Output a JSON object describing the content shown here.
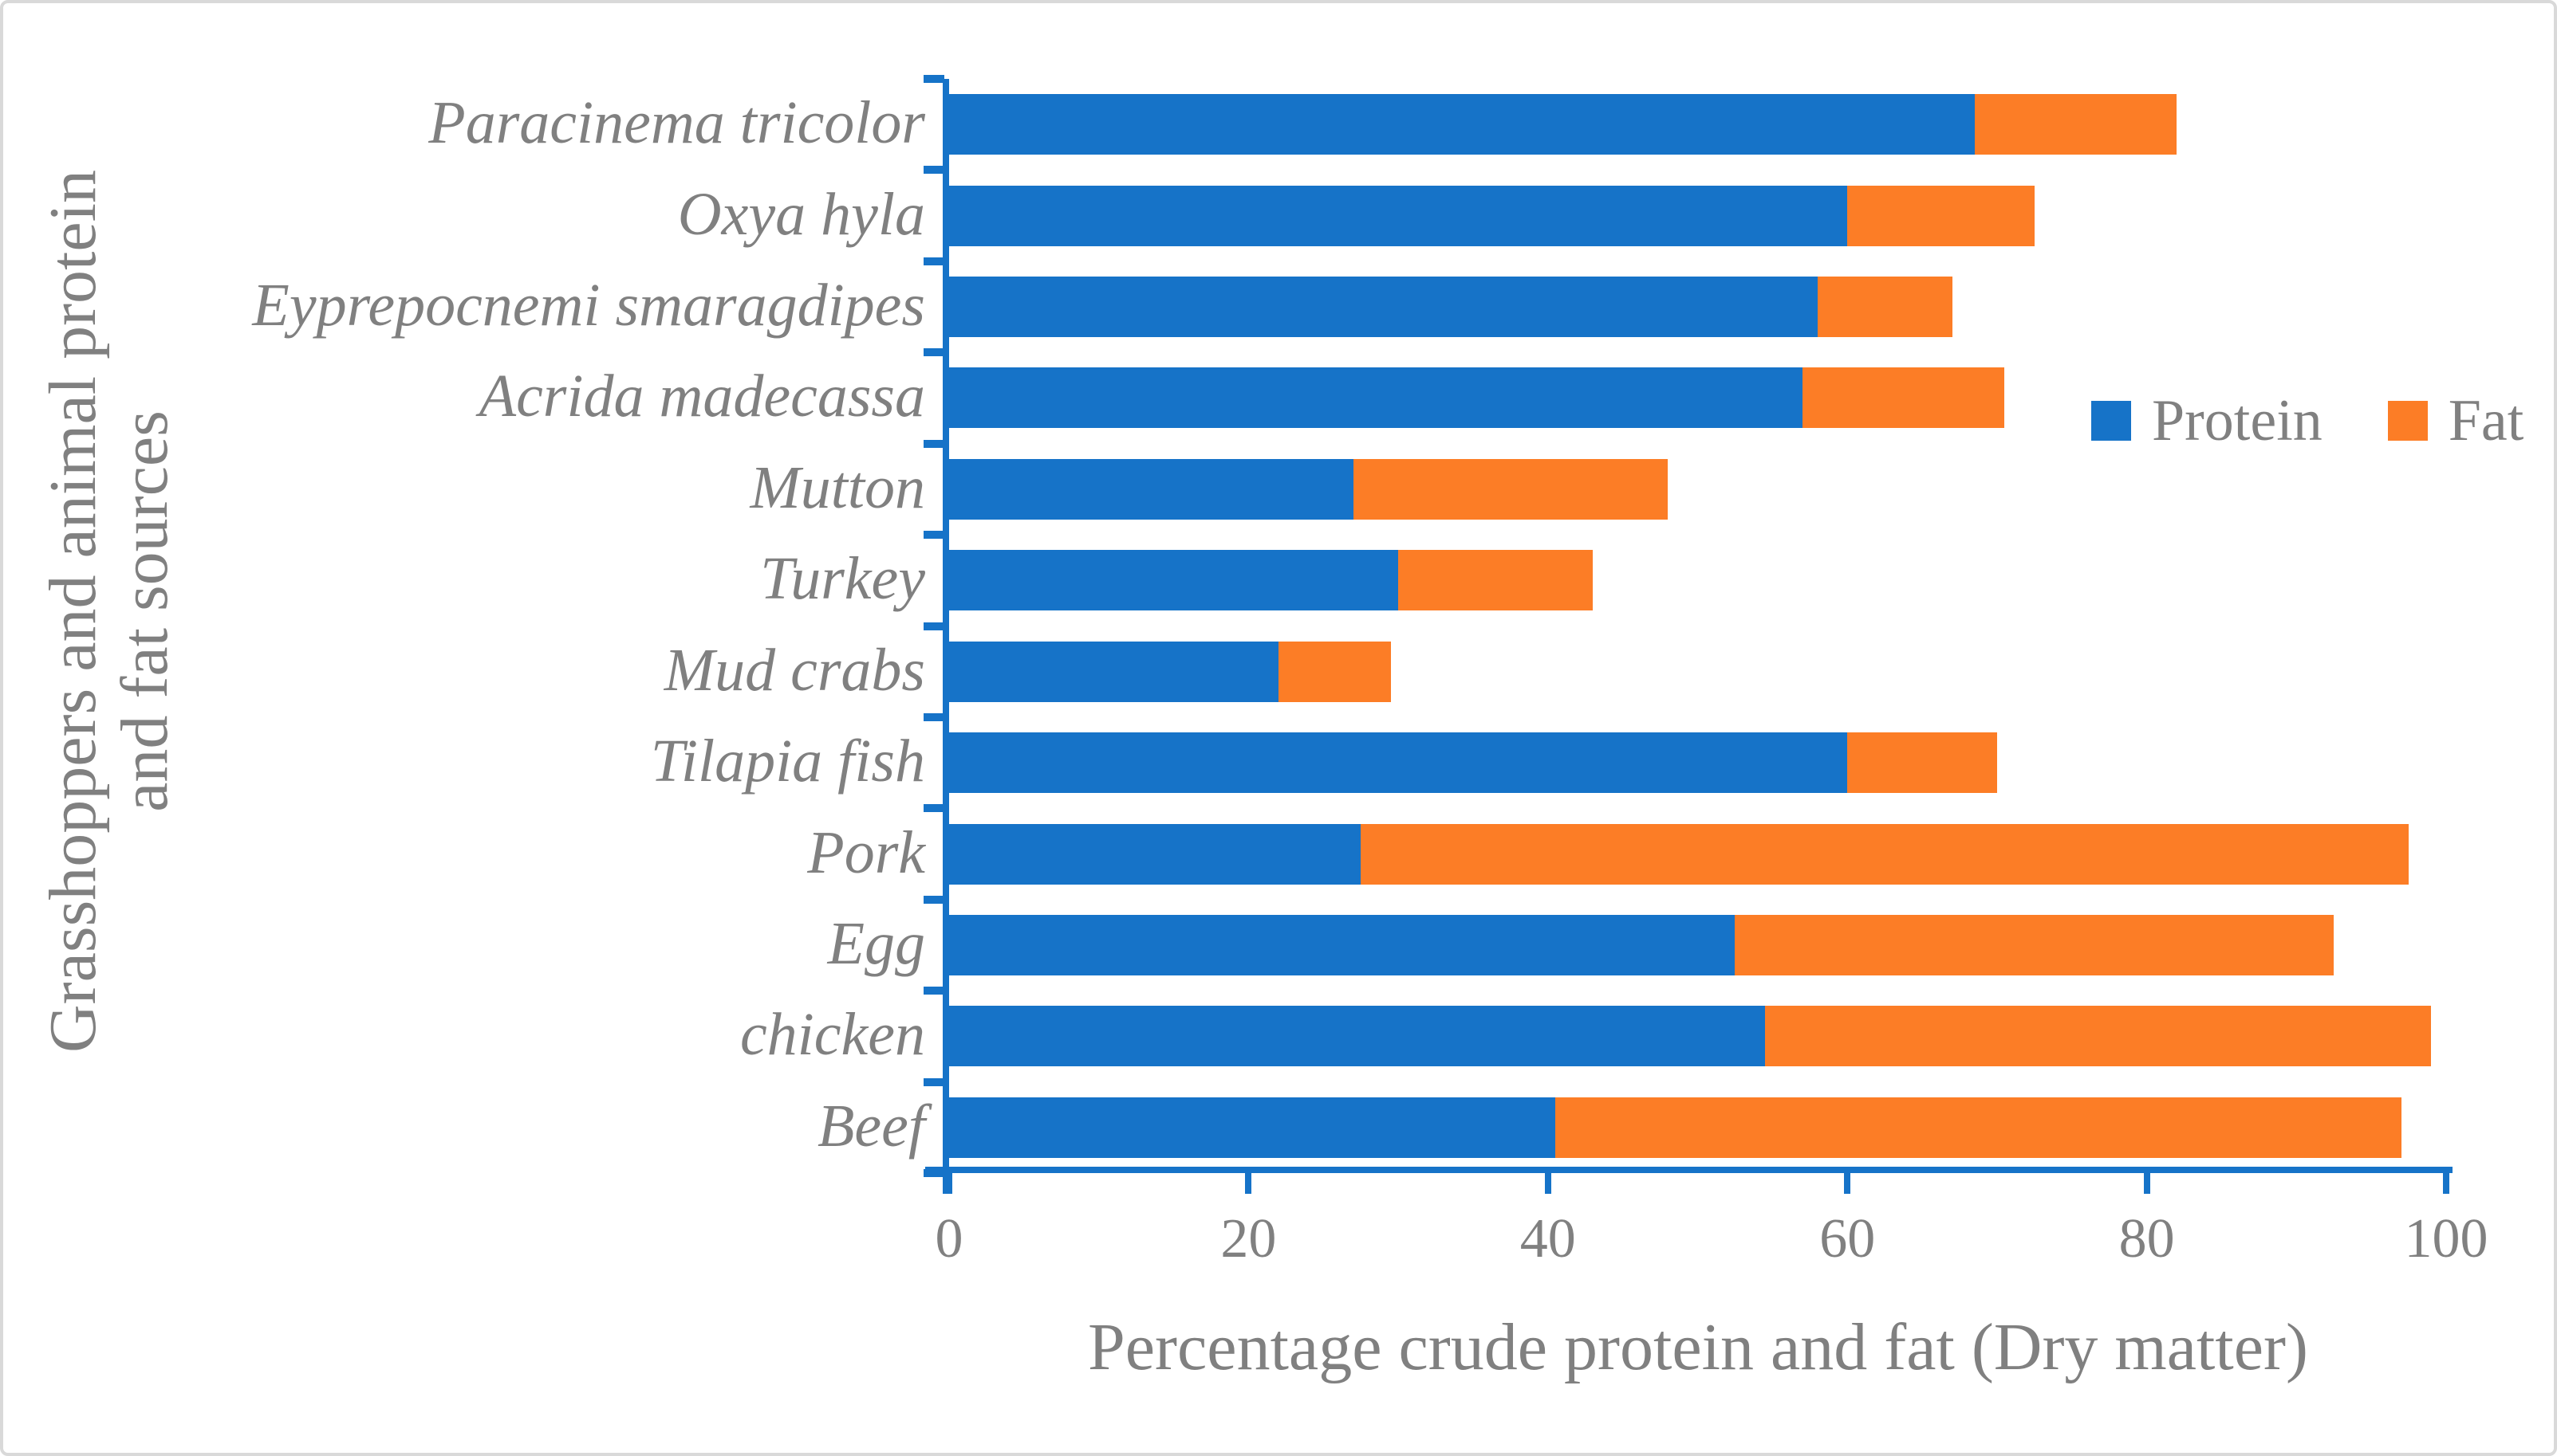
{
  "figure": {
    "background": "#FFFFFF",
    "border_color": "#D9D9D9",
    "axis_color": "#1673C8",
    "text_color": "#808080"
  },
  "chart_data": {
    "type": "bar",
    "orientation": "horizontal",
    "stacked": true,
    "title": "",
    "xlabel": "Percentage crude protein and fat (Dry matter)",
    "ylabel_lines": [
      "Grasshoppers and animal protein",
      "and fat sources"
    ],
    "categories": [
      "Paracinema tricolor",
      "Oxya hyla",
      "Eyprepocnemi smaragdipes",
      "Acrida madecassa",
      "Mutton",
      "Turkey",
      "Mud crabs",
      "Tilapia fish",
      "Pork",
      "Egg",
      "chicken",
      "Beef"
    ],
    "series": [
      {
        "name": "Protein",
        "color": "#1673C8",
        "values": [
          68.5,
          60,
          58,
          57,
          27,
          30,
          22,
          60,
          27.5,
          52.5,
          54.5,
          40.5
        ]
      },
      {
        "name": "Fat",
        "color": "#FC7D26",
        "values": [
          13.5,
          12.5,
          9,
          13.5,
          21,
          13,
          7.5,
          10,
          70,
          40,
          44.5,
          56.5
        ]
      }
    ],
    "xlim": [
      0,
      100
    ],
    "x_ticks": [
      "0",
      "20",
      "40",
      "60",
      "80",
      "100"
    ],
    "grid": false,
    "legend": {
      "position": "right-middle",
      "entries": [
        {
          "label": "Protein",
          "color": "#1673C8"
        },
        {
          "label": "Fat",
          "color": "#FC7D26"
        }
      ]
    }
  }
}
